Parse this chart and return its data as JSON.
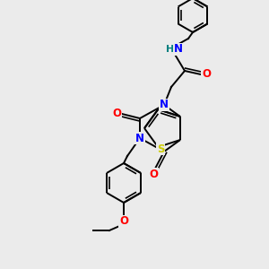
{
  "bg_color": "#ebebeb",
  "atom_colors": {
    "C": "#000000",
    "N": "#0000ff",
    "O": "#ff0000",
    "S": "#cccc00",
    "H": "#008080"
  },
  "figsize": [
    3.0,
    3.0
  ],
  "dpi": 100
}
